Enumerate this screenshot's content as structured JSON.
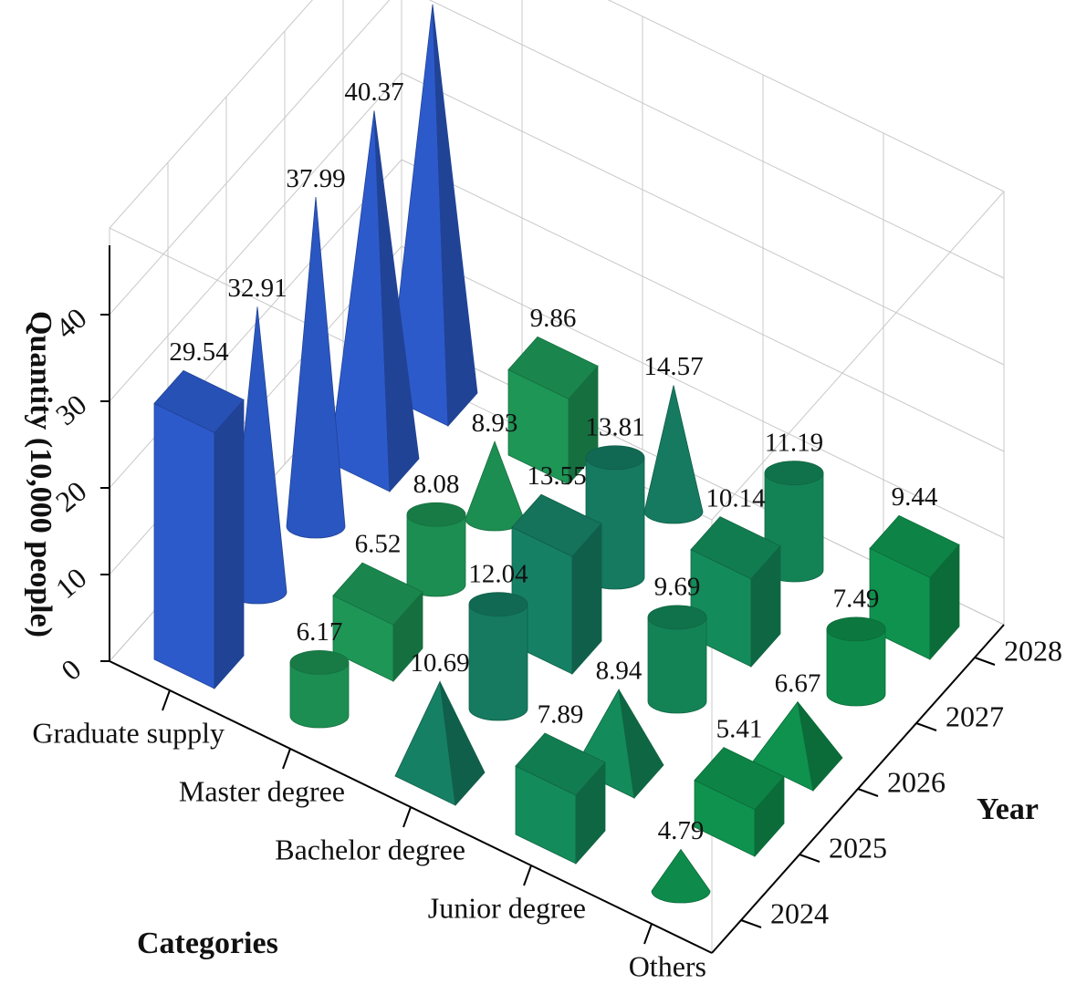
{
  "chart_data": {
    "type": "bar3d",
    "zlabel": "Quantity (10,000 people)",
    "xlabel": "Categories",
    "ylabel": "Year",
    "categories": [
      "Graduate supply",
      "Master degree",
      "Bachelor degree",
      "Junior degree",
      "Others"
    ],
    "years": [
      2024,
      2025,
      2026,
      2027,
      2028
    ],
    "values": [
      [
        29.54,
        32.91,
        37.99,
        40.37,
        45.06
      ],
      [
        6.17,
        6.52,
        8.08,
        8.93,
        9.86
      ],
      [
        10.69,
        12.04,
        13.55,
        13.81,
        14.57
      ],
      [
        7.89,
        8.94,
        9.69,
        10.14,
        11.19
      ],
      [
        4.79,
        5.41,
        6.67,
        7.49,
        9.44
      ]
    ],
    "shapes": [
      [
        "box",
        "cone",
        "cone",
        "pyramid",
        "pyramid"
      ],
      [
        "cylinder",
        "box",
        "cylinder",
        "cone",
        "box"
      ],
      [
        "pyramid",
        "cylinder",
        "box",
        "cylinder",
        "cone"
      ],
      [
        "box",
        "pyramid",
        "cylinder",
        "box",
        "cylinder"
      ],
      [
        "cone",
        "box",
        "pyramid",
        "cylinder",
        "box"
      ]
    ],
    "colors": [
      "#2f5fd6",
      "#1f9e5a",
      "#17876a",
      "#15925f",
      "#109a52"
    ],
    "zlim": [
      0,
      50
    ],
    "zticks": [
      0,
      10,
      20,
      30,
      40
    ],
    "grid": true
  }
}
